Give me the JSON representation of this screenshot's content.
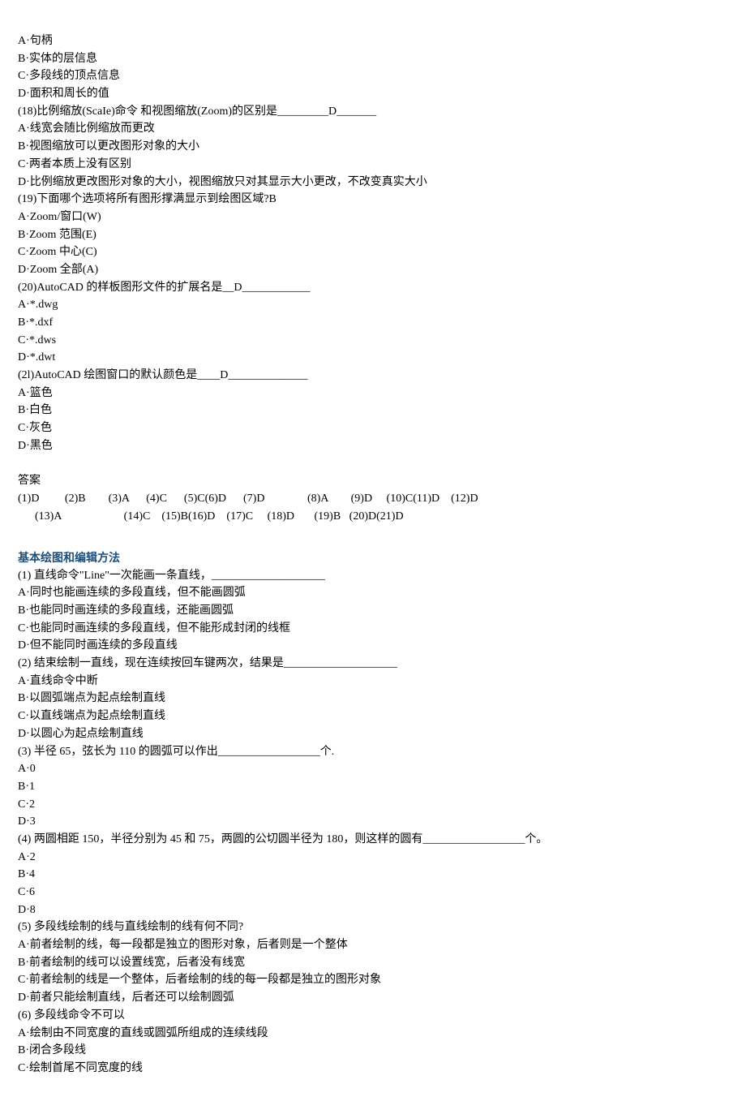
{
  "block1": [
    "A·句柄",
    "B·实体的层信息",
    "C·多段线的顶点信息",
    "D·面积和周长的值",
    "(18)比例缩放(ScaIe)命令 和视图缩放(Zoom)的区别是_________D_______",
    "A·线宽会随比例缩放而更改",
    "B·视图缩放可以更改图形对象的大小",
    "C·两者本质上没有区别",
    "D·比例缩放更改图形对象的大小，视图缩放只对其显示大小更改，不改变真实大小",
    "(19)下面哪个选项将所有图形撑满显示到绘图区域?B",
    "A·Zoom/窗口(W)",
    "B·Zoom 范围(E)",
    "C·Zoom 中心(C)",
    "D·Zoom 全部(A)",
    "(20)AutoCAD 的样板图形文件的扩展名是__D____________",
    "A·*.dwg",
    "B·*.dxf",
    "C·*.dws",
    "D·*.dwt",
    "(2l)AutoCAD 绘图窗口的默认颜色是____D______________",
    "A·篮色",
    "B·白色",
    "C·灰色",
    "D·黑色"
  ],
  "answers_label": "答案",
  "answers_row1": "(1)D         (2)B        (3)A      (4)C      (5)C(6)D      (7)D               (8)A        (9)D     (10)C(11)D    (12)D",
  "answers_row2": "      (13)A                      (14)C    (15)B(16)D    (17)C     (18)D       (19)B   (20)D(21)D",
  "section2_heading": "基本绘图和编辑方法",
  "block2": [
    "(1) 直线命令\"Line\"一次能画一条直线，____________________",
    "A·同时也能画连续的多段直线，但不能画圆弧",
    "B·也能同时画连续的多段直线，还能画圆弧",
    "C·也能同时画连续的多段直线，但不能形成封闭的线框",
    "D·但不能同时画连续的多段直线",
    "(2) 结束绘制一直线，现在连续按回车键两次，结果是____________________",
    "A·直线命令中断",
    "B·以圆弧端点为起点绘制直线",
    "C·以直线端点为起点绘制直线",
    "D·以圆心为起点绘制直线",
    "(3) 半径 65，弦长为 110 的圆弧可以作出__________________个.",
    "A·0",
    "B·1",
    "C·2",
    "D·3",
    "(4) 两圆相距 150，半径分别为 45 和 75，两圆的公切圆半径为 180，则这样的圆有__________________个。",
    "A·2",
    "B·4",
    "C·6",
    "D·8",
    "(5) 多段线绘制的线与直线绘制的线有何不同?",
    "A·前者绘制的线，每一段都是独立的图形对象，后者则是一个整体",
    "B·前者绘制的线可以设置线宽，后者没有线宽",
    "C·前者绘制的线是一个整体，后者绘制的线的每一段都是独立的图形对象",
    "D·前者只能绘制直线，后者还可以绘制圆弧",
    "(6) 多段线命令不可以",
    "A·绘制由不同宽度的直线或圆弧所组成的连续线段",
    "B·闭合多段线",
    "C·绘制首尾不同宽度的线"
  ],
  "style": {
    "background_color": "#ffffff",
    "text_color": "#000000",
    "heading_color": "#1f4e79",
    "body_font": "SimSun",
    "heading_font": "SimHei",
    "font_size_pt": 10.5,
    "line_height": 1.55
  }
}
